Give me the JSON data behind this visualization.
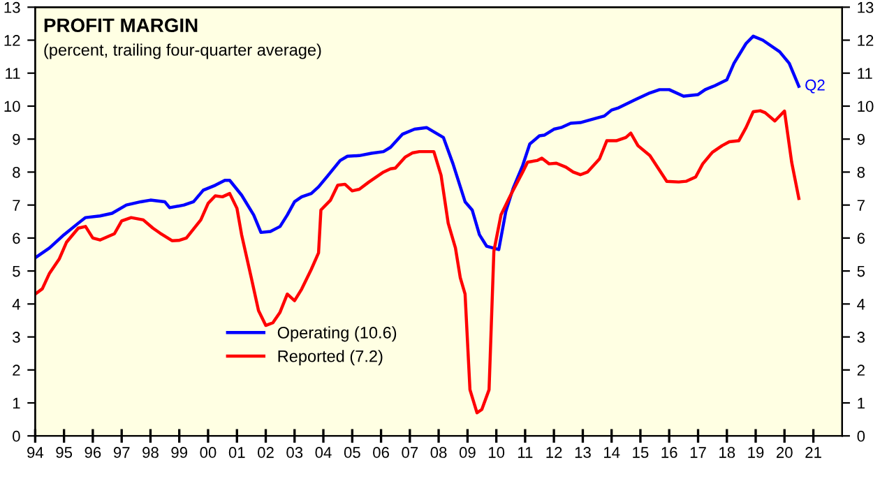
{
  "chart_data": {
    "type": "line",
    "title": "PROFIT MARGIN",
    "subtitle": "(percent, trailing four-quarter average)",
    "xlim": [
      "1994-01",
      "2022-01"
    ],
    "xticks": [
      {
        "value": "1994-01",
        "label": "94"
      },
      {
        "value": "1995-01",
        "label": "95"
      },
      {
        "value": "1996-01",
        "label": "96"
      },
      {
        "value": "1997-01",
        "label": "97"
      },
      {
        "value": "1998-01",
        "label": "98"
      },
      {
        "value": "1999-01",
        "label": "99"
      },
      {
        "value": "2000-01",
        "label": "00"
      },
      {
        "value": "2001-01",
        "label": "01"
      },
      {
        "value": "2002-01",
        "label": "02"
      },
      {
        "value": "2003-01",
        "label": "03"
      },
      {
        "value": "2004-01",
        "label": "04"
      },
      {
        "value": "2005-01",
        "label": "05"
      },
      {
        "value": "2006-01",
        "label": "06"
      },
      {
        "value": "2007-01",
        "label": "07"
      },
      {
        "value": "2008-01",
        "label": "08"
      },
      {
        "value": "2009-01",
        "label": "09"
      },
      {
        "value": "2010-01",
        "label": "10"
      },
      {
        "value": "2011-01",
        "label": "11"
      },
      {
        "value": "2012-01",
        "label": "12"
      },
      {
        "value": "2013-01",
        "label": "13"
      },
      {
        "value": "2014-01",
        "label": "14"
      },
      {
        "value": "2015-01",
        "label": "15"
      },
      {
        "value": "2016-01",
        "label": "16"
      },
      {
        "value": "2017-01",
        "label": "17"
      },
      {
        "value": "2018-01",
        "label": "18"
      },
      {
        "value": "2019-01",
        "label": "19"
      },
      {
        "value": "2020-01",
        "label": "20"
      },
      {
        "value": "2021-01",
        "label": "21"
      }
    ],
    "ylim": [
      0,
      13
    ],
    "yticks": [
      0,
      1,
      2,
      3,
      4,
      5,
      6,
      7,
      8,
      9,
      10,
      11,
      12,
      13
    ],
    "y2lim": [
      0,
      13
    ],
    "y2ticks": [
      0,
      1,
      2,
      3,
      4,
      5,
      6,
      7,
      8,
      9,
      10,
      11,
      12,
      13
    ],
    "grid": false,
    "legend": "bottom left",
    "annotations": [
      {
        "text": "Q2",
        "x": "2020-07",
        "y": 10.6
      }
    ],
    "series": [
      {
        "name": "Operating (10.6)",
        "color": "#0000ff",
        "x": [
          "1994-01",
          "1994-07",
          "1995-01",
          "1995-07",
          "1995-10",
          "1996-04",
          "1996-09",
          "1997-03",
          "1997-09",
          "1998-01",
          "1998-07",
          "1998-09",
          "1999-03",
          "1999-07",
          "1999-11",
          "2000-04",
          "2000-08",
          "2000-10",
          "2001-03",
          "2001-08",
          "2001-11",
          "2002-03",
          "2002-07",
          "2002-10",
          "2003-01",
          "2003-04",
          "2003-08",
          "2003-11",
          "2004-03",
          "2004-08",
          "2004-11",
          "2005-04",
          "2005-09",
          "2006-02",
          "2006-05",
          "2006-10",
          "2007-03",
          "2007-08",
          "2008-03",
          "2008-07",
          "2008-12",
          "2009-03",
          "2009-06",
          "2009-09",
          "2010-02",
          "2010-05",
          "2010-08",
          "2010-12",
          "2011-03",
          "2011-07",
          "2011-09",
          "2012-01",
          "2012-04",
          "2012-08",
          "2012-12",
          "2013-06",
          "2013-10",
          "2014-01",
          "2014-04",
          "2014-11",
          "2015-05",
          "2015-09",
          "2016-01",
          "2016-07",
          "2017-01",
          "2017-04",
          "2017-08",
          "2018-01",
          "2018-04",
          "2018-09",
          "2018-12",
          "2019-04",
          "2019-11",
          "2020-03",
          "2020-07"
        ],
        "values": [
          5.4,
          5.7,
          6.1,
          6.45,
          6.62,
          6.67,
          6.75,
          7.0,
          7.1,
          7.15,
          7.1,
          6.92,
          7.0,
          7.1,
          7.45,
          7.6,
          7.75,
          7.75,
          7.3,
          6.7,
          6.17,
          6.2,
          6.35,
          6.7,
          7.1,
          7.25,
          7.35,
          7.55,
          7.9,
          8.35,
          8.48,
          8.5,
          8.57,
          8.62,
          8.75,
          9.15,
          9.3,
          9.35,
          9.05,
          8.25,
          7.1,
          6.85,
          6.1,
          5.75,
          5.65,
          6.8,
          7.5,
          8.2,
          8.85,
          9.1,
          9.12,
          9.3,
          9.35,
          9.48,
          9.5,
          9.62,
          9.7,
          9.88,
          9.95,
          10.2,
          10.4,
          10.5,
          10.5,
          10.3,
          10.35,
          10.5,
          10.62,
          10.8,
          11.3,
          11.9,
          12.12,
          12.0,
          11.65,
          11.3,
          10.6
        ]
      },
      {
        "name": "Reported (7.2)",
        "color": "#ff0000",
        "x": [
          "1994-01",
          "1994-04",
          "1994-07",
          "1994-11",
          "1995-02",
          "1995-07",
          "1995-10",
          "1996-01",
          "1996-04",
          "1996-10",
          "1997-01",
          "1997-05",
          "1997-10",
          "1998-02",
          "1998-05",
          "1998-10",
          "1999-01",
          "1999-04",
          "1999-10",
          "2000-01",
          "2000-04",
          "2000-07",
          "2000-10",
          "2001-01",
          "2001-03",
          "2001-07",
          "2001-10",
          "2002-01",
          "2002-04",
          "2002-07",
          "2002-10",
          "2003-01",
          "2003-04",
          "2003-08",
          "2003-11",
          "2003-12",
          "2004-04",
          "2004-07",
          "2004-10",
          "2005-01",
          "2005-04",
          "2005-08",
          "2006-02",
          "2006-05",
          "2006-07",
          "2006-11",
          "2007-02",
          "2007-05",
          "2007-11",
          "2008-02",
          "2008-05",
          "2008-08",
          "2008-10",
          "2008-12",
          "2009-02",
          "2009-05",
          "2009-07",
          "2009-10",
          "2009-12",
          "2010-03",
          "2010-07",
          "2010-12",
          "2011-02",
          "2011-06",
          "2011-08",
          "2011-11",
          "2012-02",
          "2012-06",
          "2012-09",
          "2012-12",
          "2013-03",
          "2013-08",
          "2013-11",
          "2014-03",
          "2014-07",
          "2014-09",
          "2014-12",
          "2015-05",
          "2015-12",
          "2016-05",
          "2016-08",
          "2016-12",
          "2017-03",
          "2017-07",
          "2017-11",
          "2018-02",
          "2018-06",
          "2018-09",
          "2018-12",
          "2019-03",
          "2019-05",
          "2019-09",
          "2020-01",
          "2020-04",
          "2020-07"
        ],
        "values": [
          4.3,
          4.46,
          4.93,
          5.36,
          5.87,
          6.3,
          6.35,
          6.0,
          5.94,
          6.13,
          6.52,
          6.62,
          6.55,
          6.3,
          6.15,
          5.92,
          5.93,
          6.0,
          6.55,
          7.05,
          7.28,
          7.25,
          7.35,
          6.9,
          6.1,
          4.8,
          3.8,
          3.35,
          3.43,
          3.75,
          4.3,
          4.1,
          4.45,
          5.05,
          5.55,
          6.85,
          7.15,
          7.6,
          7.63,
          7.43,
          7.48,
          7.7,
          8.0,
          8.1,
          8.12,
          8.45,
          8.58,
          8.62,
          8.62,
          7.9,
          6.45,
          5.7,
          4.8,
          4.3,
          1.4,
          0.7,
          0.8,
          1.4,
          5.6,
          6.7,
          7.3,
          8.0,
          8.3,
          8.35,
          8.42,
          8.25,
          8.27,
          8.15,
          8.0,
          7.92,
          8.0,
          8.4,
          8.95,
          8.95,
          9.05,
          9.18,
          8.8,
          8.5,
          7.72,
          7.7,
          7.72,
          7.85,
          8.25,
          8.6,
          8.8,
          8.92,
          8.95,
          9.35,
          9.83,
          9.86,
          9.8,
          9.55,
          9.85,
          8.3,
          7.2
        ]
      }
    ]
  }
}
